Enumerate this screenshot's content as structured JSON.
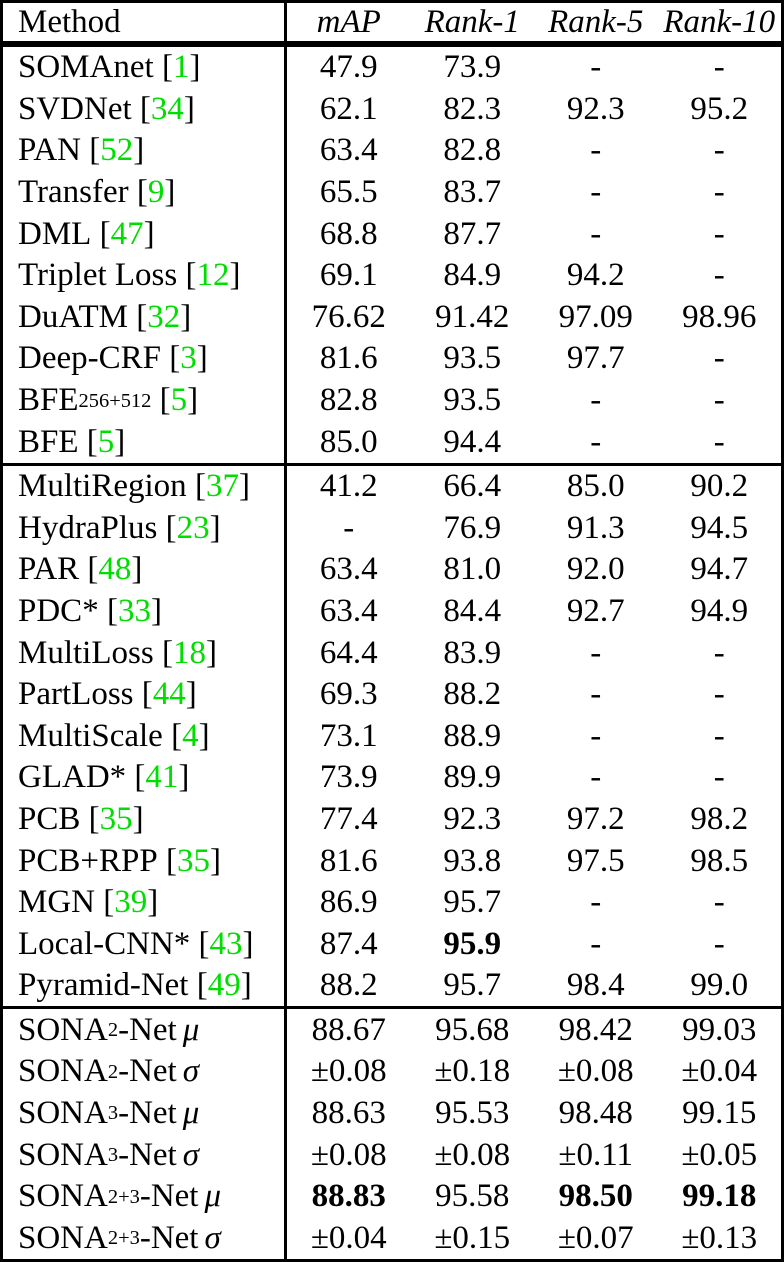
{
  "accent_color": "#00DD00",
  "table": {
    "headers": {
      "method": "Method",
      "metrics": [
        "mAP",
        "Rank-1",
        "Rank-5",
        "Rank-10"
      ]
    },
    "sections": [
      {
        "rows": [
          {
            "name": "SOMAnet",
            "sup": null,
            "suffix": "",
            "symbol": null,
            "cite": "1",
            "values": [
              "47.9",
              "73.9",
              "-",
              "-"
            ],
            "bold": [
              false,
              false,
              false,
              false
            ]
          },
          {
            "name": "SVDNet",
            "sup": null,
            "suffix": "",
            "symbol": null,
            "cite": "34",
            "values": [
              "62.1",
              "82.3",
              "92.3",
              "95.2"
            ],
            "bold": [
              false,
              false,
              false,
              false
            ]
          },
          {
            "name": "PAN",
            "sup": null,
            "suffix": "",
            "symbol": null,
            "cite": "52",
            "values": [
              "63.4",
              "82.8",
              "-",
              "-"
            ],
            "bold": [
              false,
              false,
              false,
              false
            ]
          },
          {
            "name": "Transfer",
            "sup": null,
            "suffix": "",
            "symbol": null,
            "cite": "9",
            "values": [
              "65.5",
              "83.7",
              "-",
              "-"
            ],
            "bold": [
              false,
              false,
              false,
              false
            ]
          },
          {
            "name": "DML",
            "sup": null,
            "suffix": "",
            "symbol": null,
            "cite": "47",
            "values": [
              "68.8",
              "87.7",
              "-",
              "-"
            ],
            "bold": [
              false,
              false,
              false,
              false
            ]
          },
          {
            "name": "Triplet Loss",
            "sup": null,
            "suffix": "",
            "symbol": null,
            "cite": "12",
            "values": [
              "69.1",
              "84.9",
              "94.2",
              "-"
            ],
            "bold": [
              false,
              false,
              false,
              false
            ]
          },
          {
            "name": "DuATM",
            "sup": null,
            "suffix": "",
            "symbol": null,
            "cite": "32",
            "values": [
              "76.62",
              "91.42",
              "97.09",
              "98.96"
            ],
            "bold": [
              false,
              false,
              false,
              false
            ]
          },
          {
            "name": "Deep-CRF",
            "sup": null,
            "suffix": "",
            "symbol": null,
            "cite": "3",
            "values": [
              "81.6",
              "93.5",
              "97.7",
              "-"
            ],
            "bold": [
              false,
              false,
              false,
              false
            ]
          },
          {
            "name": "BFE",
            "sup": "256+512",
            "suffix": "",
            "symbol": null,
            "cite": "5",
            "values": [
              "82.8",
              "93.5",
              "-",
              "-"
            ],
            "bold": [
              false,
              false,
              false,
              false
            ]
          },
          {
            "name": "BFE",
            "sup": null,
            "suffix": "",
            "symbol": null,
            "cite": "5",
            "values": [
              "85.0",
              "94.4",
              "-",
              "-"
            ],
            "bold": [
              false,
              false,
              false,
              false
            ]
          }
        ]
      },
      {
        "rows": [
          {
            "name": "MultiRegion",
            "sup": null,
            "suffix": "",
            "symbol": null,
            "cite": "37",
            "values": [
              "41.2",
              "66.4",
              "85.0",
              "90.2"
            ],
            "bold": [
              false,
              false,
              false,
              false
            ]
          },
          {
            "name": "HydraPlus",
            "sup": null,
            "suffix": "",
            "symbol": null,
            "cite": "23",
            "values": [
              "-",
              "76.9",
              "91.3",
              "94.5"
            ],
            "bold": [
              false,
              false,
              false,
              false
            ]
          },
          {
            "name": "PAR",
            "sup": null,
            "suffix": "",
            "symbol": null,
            "cite": "48",
            "values": [
              "63.4",
              "81.0",
              "92.0",
              "94.7"
            ],
            "bold": [
              false,
              false,
              false,
              false
            ]
          },
          {
            "name": "PDC*",
            "sup": null,
            "suffix": "",
            "symbol": null,
            "cite": "33",
            "values": [
              "63.4",
              "84.4",
              "92.7",
              "94.9"
            ],
            "bold": [
              false,
              false,
              false,
              false
            ]
          },
          {
            "name": "MultiLoss",
            "sup": null,
            "suffix": "",
            "symbol": null,
            "cite": "18",
            "values": [
              "64.4",
              "83.9",
              "-",
              "-"
            ],
            "bold": [
              false,
              false,
              false,
              false
            ]
          },
          {
            "name": "PartLoss",
            "sup": null,
            "suffix": "",
            "symbol": null,
            "cite": "44",
            "values": [
              "69.3",
              "88.2",
              "-",
              "-"
            ],
            "bold": [
              false,
              false,
              false,
              false
            ]
          },
          {
            "name": "MultiScale",
            "sup": null,
            "suffix": "",
            "symbol": null,
            "cite": "4",
            "values": [
              "73.1",
              "88.9",
              "-",
              "-"
            ],
            "bold": [
              false,
              false,
              false,
              false
            ]
          },
          {
            "name": "GLAD*",
            "sup": null,
            "suffix": "",
            "symbol": null,
            "cite": "41",
            "values": [
              "73.9",
              "89.9",
              "-",
              "-"
            ],
            "bold": [
              false,
              false,
              false,
              false
            ]
          },
          {
            "name": "PCB",
            "sup": null,
            "suffix": "",
            "symbol": null,
            "cite": "35",
            "values": [
              "77.4",
              "92.3",
              "97.2",
              "98.2"
            ],
            "bold": [
              false,
              false,
              false,
              false
            ]
          },
          {
            "name": "PCB+RPP",
            "sup": null,
            "suffix": "",
            "symbol": null,
            "cite": "35",
            "values": [
              "81.6",
              "93.8",
              "97.5",
              "98.5"
            ],
            "bold": [
              false,
              false,
              false,
              false
            ]
          },
          {
            "name": "MGN",
            "sup": null,
            "suffix": "",
            "symbol": null,
            "cite": "39",
            "values": [
              "86.9",
              "95.7",
              "-",
              "-"
            ],
            "bold": [
              false,
              false,
              false,
              false
            ]
          },
          {
            "name": "Local-CNN*",
            "sup": null,
            "suffix": "",
            "symbol": null,
            "cite": "43",
            "values": [
              "87.4",
              "95.9",
              "-",
              "-"
            ],
            "bold": [
              false,
              true,
              false,
              false
            ]
          },
          {
            "name": "Pyramid-Net",
            "sup": null,
            "suffix": "",
            "symbol": null,
            "cite": "49",
            "values": [
              "88.2",
              "95.7",
              "98.4",
              "99.0"
            ],
            "bold": [
              false,
              false,
              false,
              false
            ]
          }
        ]
      },
      {
        "rows": [
          {
            "name": "SONA",
            "sup": "2",
            "suffix": "-Net",
            "symbol": "μ",
            "cite": null,
            "values": [
              "88.67",
              "95.68",
              "98.42",
              "99.03"
            ],
            "bold": [
              false,
              false,
              false,
              false
            ]
          },
          {
            "name": "SONA",
            "sup": "2",
            "suffix": "-Net",
            "symbol": "σ",
            "cite": null,
            "values": [
              "±0.08",
              "±0.18",
              "±0.08",
              "±0.04"
            ],
            "bold": [
              false,
              false,
              false,
              false
            ]
          },
          {
            "name": "SONA",
            "sup": "3",
            "suffix": "-Net",
            "symbol": "μ",
            "cite": null,
            "values": [
              "88.63",
              "95.53",
              "98.48",
              "99.15"
            ],
            "bold": [
              false,
              false,
              false,
              false
            ]
          },
          {
            "name": "SONA",
            "sup": "3",
            "suffix": "-Net",
            "symbol": "σ",
            "cite": null,
            "values": [
              "±0.08",
              "±0.08",
              "±0.11",
              "±0.05"
            ],
            "bold": [
              false,
              false,
              false,
              false
            ]
          },
          {
            "name": "SONA",
            "sup": "2+3",
            "suffix": "-Net",
            "symbol": "μ",
            "cite": null,
            "values": [
              "88.83",
              "95.58",
              "98.50",
              "99.18"
            ],
            "bold": [
              true,
              false,
              true,
              true
            ]
          },
          {
            "name": "SONA",
            "sup": "2+3",
            "suffix": "-Net",
            "symbol": "σ",
            "cite": null,
            "values": [
              "±0.04",
              "±0.15",
              "±0.07",
              "±0.13"
            ],
            "bold": [
              false,
              false,
              false,
              false
            ]
          }
        ]
      }
    ]
  }
}
